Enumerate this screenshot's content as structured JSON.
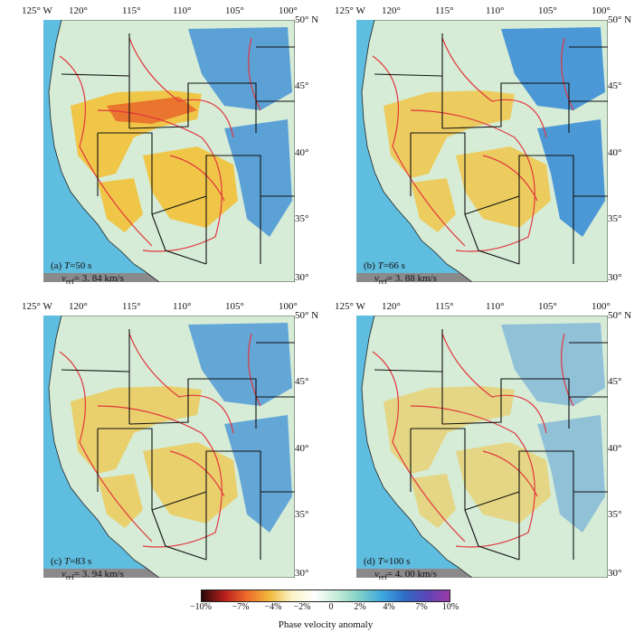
{
  "longitude_labels": [
    "125° W",
    "120°",
    "115°",
    "110°",
    "105°",
    "100°"
  ],
  "latitude_labels": [
    "50° N",
    "45°",
    "40°",
    "35°",
    "30°"
  ],
  "panels": [
    {
      "letter": "(a)",
      "T_label": "T",
      "T_value": "=50 s",
      "v_label": "v",
      "v_sub": "ref",
      "v_value": "= 3. 84 km/s"
    },
    {
      "letter": "(b)",
      "T_label": "T",
      "T_value": "=66 s",
      "v_label": "v",
      "v_sub": "ref",
      "v_value": "= 3. 88 km/s"
    },
    {
      "letter": "(c)",
      "T_label": "T",
      "T_value": "=83 s",
      "v_label": "v",
      "v_sub": "ref",
      "v_value": "= 3. 94 km/s"
    },
    {
      "letter": "(d)",
      "T_label": "T",
      "T_value": "=100 s",
      "v_label": "v",
      "v_sub": "ref",
      "v_value": "= 4. 00 km/s"
    }
  ],
  "legend": {
    "title": "Phase velocity anomaly",
    "ticks": [
      "−10%",
      "−7%",
      "−4%",
      "−2%",
      "0",
      "2%",
      "4%",
      "7%",
      "10%"
    ],
    "colors": [
      "#2a0808",
      "#b81e1e",
      "#ee6a2a",
      "#f1b93b",
      "#f9f3c6",
      "#ffffff",
      "#c6ecd7",
      "#7fd0c8",
      "#3ea8df",
      "#2e6cc6",
      "#5a45b8",
      "#9c3aa6"
    ]
  },
  "colors": {
    "ocean": "#5fbddf",
    "nodata": "#8a8a8a",
    "state_lines": "#111111",
    "province_lines": "#e2373f"
  }
}
